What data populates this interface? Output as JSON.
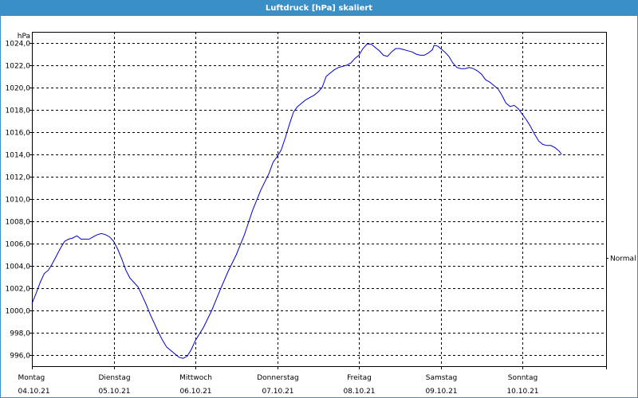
{
  "chart_data": {
    "type": "line",
    "title": "Luftdruck [hPa] skaliert",
    "ylabel": "hPa",
    "ylim": [
      995.0,
      1025.0
    ],
    "yticks": [
      996,
      998,
      1000,
      1002,
      1004,
      1006,
      1008,
      1010,
      1012,
      1014,
      1016,
      1018,
      1020,
      1022,
      1024
    ],
    "ytick_labels": [
      "996,0",
      "998,0",
      "1000,0",
      "1002,0",
      "1004,0",
      "1006,0",
      "1008,0",
      "1010,0",
      "1012,0",
      "1014,0",
      "1016,0",
      "1018,0",
      "1020,0",
      "1022,0",
      "1024,0"
    ],
    "xlim": [
      0,
      7
    ],
    "days": [
      {
        "day": "Montag",
        "date": "04.10.21"
      },
      {
        "day": "Dienstag",
        "date": "05.10.21"
      },
      {
        "day": "Mittwoch",
        "date": "06.10.21"
      },
      {
        "day": "Donnerstag",
        "date": "07.10.21"
      },
      {
        "day": "Freitag",
        "date": "08.10.21"
      },
      {
        "day": "Samstag",
        "date": "09.10.21"
      },
      {
        "day": "Sonntag",
        "date": "10.10.21"
      }
    ],
    "right_label": "Normal",
    "right_label_value": 1004.7,
    "grid": true,
    "line_color": "#0000cc",
    "series": [
      {
        "values": [
          [
            0.0,
            1000.6
          ],
          [
            0.05,
            1001.5
          ],
          [
            0.1,
            1002.5
          ],
          [
            0.15,
            1003.3
          ],
          [
            0.2,
            1003.6
          ],
          [
            0.25,
            1004.2
          ],
          [
            0.3,
            1004.9
          ],
          [
            0.35,
            1005.6
          ],
          [
            0.4,
            1006.2
          ],
          [
            0.45,
            1006.4
          ],
          [
            0.5,
            1006.5
          ],
          [
            0.55,
            1006.7
          ],
          [
            0.6,
            1006.4
          ],
          [
            0.7,
            1006.4
          ],
          [
            0.75,
            1006.6
          ],
          [
            0.8,
            1006.8
          ],
          [
            0.85,
            1006.9
          ],
          [
            0.9,
            1006.8
          ],
          [
            0.95,
            1006.6
          ],
          [
            1.0,
            1006.2
          ],
          [
            1.05,
            1005.5
          ],
          [
            1.1,
            1004.6
          ],
          [
            1.15,
            1003.6
          ],
          [
            1.2,
            1002.9
          ],
          [
            1.25,
            1002.5
          ],
          [
            1.3,
            1002.1
          ],
          [
            1.35,
            1001.3
          ],
          [
            1.4,
            1000.5
          ],
          [
            1.45,
            999.6
          ],
          [
            1.5,
            998.8
          ],
          [
            1.55,
            998.0
          ],
          [
            1.6,
            997.3
          ],
          [
            1.65,
            996.7
          ],
          [
            1.7,
            996.4
          ],
          [
            1.75,
            996.1
          ],
          [
            1.8,
            995.8
          ],
          [
            1.85,
            995.7
          ],
          [
            1.9,
            995.9
          ],
          [
            1.95,
            996.5
          ],
          [
            2.0,
            997.3
          ],
          [
            2.1,
            998.5
          ],
          [
            2.2,
            1000.0
          ],
          [
            2.3,
            1001.8
          ],
          [
            2.4,
            1003.5
          ],
          [
            2.5,
            1005.0
          ],
          [
            2.6,
            1006.8
          ],
          [
            2.7,
            1009.0
          ],
          [
            2.8,
            1010.8
          ],
          [
            2.9,
            1012.3
          ],
          [
            2.95,
            1013.3
          ],
          [
            3.0,
            1013.8
          ],
          [
            3.05,
            1014.4
          ],
          [
            3.1,
            1015.5
          ],
          [
            3.15,
            1016.7
          ],
          [
            3.2,
            1017.8
          ],
          [
            3.25,
            1018.3
          ],
          [
            3.3,
            1018.6
          ],
          [
            3.35,
            1018.9
          ],
          [
            3.4,
            1019.1
          ],
          [
            3.45,
            1019.3
          ],
          [
            3.5,
            1019.6
          ],
          [
            3.55,
            1020.0
          ],
          [
            3.6,
            1021.0
          ],
          [
            3.65,
            1021.3
          ],
          [
            3.7,
            1021.6
          ],
          [
            3.75,
            1021.8
          ],
          [
            3.8,
            1021.9
          ],
          [
            3.85,
            1022.0
          ],
          [
            3.9,
            1022.2
          ],
          [
            3.95,
            1022.6
          ],
          [
            4.0,
            1022.9
          ],
          [
            4.05,
            1023.5
          ],
          [
            4.1,
            1023.9
          ],
          [
            4.15,
            1023.9
          ],
          [
            4.2,
            1023.6
          ],
          [
            4.25,
            1023.3
          ],
          [
            4.3,
            1022.9
          ],
          [
            4.35,
            1022.8
          ],
          [
            4.4,
            1023.2
          ],
          [
            4.45,
            1023.5
          ],
          [
            4.5,
            1023.5
          ],
          [
            4.55,
            1023.4
          ],
          [
            4.6,
            1023.3
          ],
          [
            4.65,
            1023.2
          ],
          [
            4.7,
            1023.0
          ],
          [
            4.75,
            1022.9
          ],
          [
            4.8,
            1022.9
          ],
          [
            4.85,
            1023.1
          ],
          [
            4.9,
            1023.4
          ],
          [
            4.92,
            1023.8
          ],
          [
            4.97,
            1023.7
          ],
          [
            5.0,
            1023.5
          ],
          [
            5.05,
            1023.2
          ],
          [
            5.1,
            1022.8
          ],
          [
            5.15,
            1022.2
          ],
          [
            5.2,
            1021.8
          ],
          [
            5.25,
            1021.7
          ],
          [
            5.3,
            1021.7
          ],
          [
            5.35,
            1021.8
          ],
          [
            5.4,
            1021.7
          ],
          [
            5.45,
            1021.5
          ],
          [
            5.5,
            1021.2
          ],
          [
            5.55,
            1020.7
          ],
          [
            5.6,
            1020.5
          ],
          [
            5.65,
            1020.2
          ],
          [
            5.7,
            1019.9
          ],
          [
            5.75,
            1019.3
          ],
          [
            5.8,
            1018.6
          ],
          [
            5.85,
            1018.3
          ],
          [
            5.9,
            1018.4
          ],
          [
            5.95,
            1018.1
          ],
          [
            6.0,
            1017.6
          ],
          [
            6.05,
            1017.1
          ],
          [
            6.1,
            1016.5
          ],
          [
            6.15,
            1015.8
          ],
          [
            6.2,
            1015.2
          ],
          [
            6.25,
            1014.9
          ],
          [
            6.3,
            1014.8
          ],
          [
            6.35,
            1014.8
          ],
          [
            6.4,
            1014.6
          ],
          [
            6.45,
            1014.3
          ],
          [
            6.48,
            1014.0
          ]
        ]
      }
    ]
  }
}
